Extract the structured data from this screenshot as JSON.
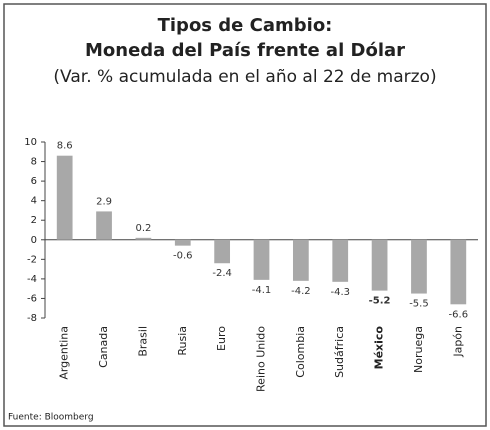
{
  "chart_data": {
    "type": "bar",
    "title": "Tipos de Cambio:",
    "subtitle": "Moneda del País frente al Dólar",
    "note": "(Var. % acumulada en el año al 22 de marzo)",
    "source": "Fuente: Bloomberg",
    "categories": [
      "Argentina",
      "Canada",
      "Brasil",
      "Rusia",
      "Euro",
      "Reino Unido",
      "Colombia",
      "Sudáfrica",
      "México",
      "Noruega",
      "Japón"
    ],
    "values": [
      8.6,
      2.9,
      0.2,
      -0.6,
      -2.4,
      -4.1,
      -4.2,
      -4.3,
      -5.2,
      -5.5,
      -6.6
    ],
    "color": "#a8a8a8",
    "bold_category": "México",
    "ylim": [
      -8,
      10
    ],
    "yticks": [
      -8,
      -6,
      -4,
      -2,
      0,
      2,
      4,
      6,
      8,
      10
    ],
    "grid": false
  }
}
